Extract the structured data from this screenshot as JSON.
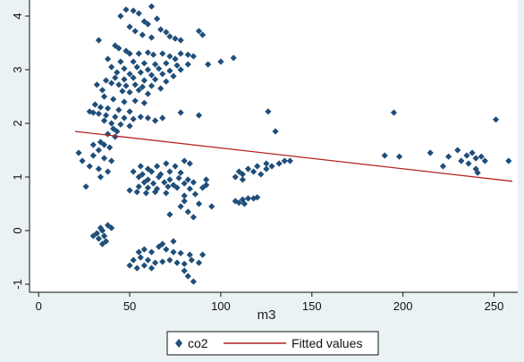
{
  "chart_data": {
    "type": "scatter",
    "title": "",
    "xlabel": "m3",
    "ylabel": "",
    "xlim": [
      -5,
      263
    ],
    "ylim": [
      -1.15,
      4.3
    ],
    "xticks": [
      0,
      50,
      100,
      150,
      200,
      250
    ],
    "yticks": [
      -1,
      0,
      1,
      2,
      3,
      4
    ],
    "grid": false,
    "legend_position": "bottom",
    "colors": {
      "background": "#eaf2f3",
      "plot_area": "#ffffff",
      "points": "#1f4e79",
      "fit_line": "#b22222"
    },
    "series": [
      {
        "name": "co2",
        "kind": "scatter",
        "marker": "diamond",
        "points": [
          [
            48,
            4.12
          ],
          [
            52,
            4.1
          ],
          [
            55,
            4.05
          ],
          [
            62,
            4.18
          ],
          [
            45,
            4.0
          ],
          [
            65,
            3.95
          ],
          [
            58,
            3.9
          ],
          [
            60,
            3.85
          ],
          [
            50,
            3.8
          ],
          [
            67,
            3.75
          ],
          [
            70,
            3.7
          ],
          [
            53,
            3.72
          ],
          [
            57,
            3.65
          ],
          [
            62,
            3.6
          ],
          [
            72,
            3.62
          ],
          [
            75,
            3.58
          ],
          [
            78,
            3.55
          ],
          [
            88,
            3.72
          ],
          [
            90,
            3.65
          ],
          [
            33,
            3.55
          ],
          [
            42,
            3.45
          ],
          [
            44,
            3.4
          ],
          [
            48,
            3.35
          ],
          [
            50,
            3.3
          ],
          [
            55,
            3.3
          ],
          [
            60,
            3.32
          ],
          [
            63,
            3.28
          ],
          [
            68,
            3.3
          ],
          [
            72,
            3.25
          ],
          [
            78,
            3.3
          ],
          [
            82,
            3.28
          ],
          [
            85,
            3.25
          ],
          [
            107,
            3.22
          ],
          [
            75,
            3.2
          ],
          [
            38,
            3.2
          ],
          [
            45,
            3.15
          ],
          [
            52,
            3.15
          ],
          [
            58,
            3.12
          ],
          [
            64,
            3.1
          ],
          [
            70,
            3.12
          ],
          [
            76,
            3.08
          ],
          [
            82,
            3.1
          ],
          [
            93,
            3.1
          ],
          [
            100,
            3.15
          ],
          [
            40,
            3.05
          ],
          [
            47,
            3.02
          ],
          [
            54,
            3.05
          ],
          [
            60,
            3.0
          ],
          [
            66,
            3.02
          ],
          [
            72,
            2.98
          ],
          [
            78,
            3.0
          ],
          [
            43,
            2.95
          ],
          [
            50,
            2.92
          ],
          [
            56,
            2.95
          ],
          [
            62,
            2.9
          ],
          [
            68,
            2.92
          ],
          [
            74,
            2.88
          ],
          [
            42,
            2.85
          ],
          [
            47,
            2.82
          ],
          [
            52,
            2.85
          ],
          [
            58,
            2.8
          ],
          [
            64,
            2.82
          ],
          [
            70,
            2.78
          ],
          [
            37,
            2.8
          ],
          [
            40,
            2.75
          ],
          [
            44,
            2.72
          ],
          [
            48,
            2.7
          ],
          [
            53,
            2.72
          ],
          [
            57,
            2.68
          ],
          [
            62,
            2.7
          ],
          [
            67,
            2.65
          ],
          [
            32,
            2.72
          ],
          [
            35,
            2.62
          ],
          [
            46,
            2.6
          ],
          [
            50,
            2.58
          ],
          [
            55,
            2.62
          ],
          [
            60,
            2.55
          ],
          [
            36,
            2.5
          ],
          [
            41,
            2.45
          ],
          [
            47,
            2.4
          ],
          [
            53,
            2.42
          ],
          [
            58,
            2.38
          ],
          [
            31,
            2.35
          ],
          [
            34,
            2.3
          ],
          [
            38,
            2.28
          ],
          [
            44,
            2.25
          ],
          [
            50,
            2.22
          ],
          [
            28,
            2.22
          ],
          [
            30,
            2.2
          ],
          [
            33,
            2.18
          ],
          [
            37,
            2.15
          ],
          [
            42,
            2.12
          ],
          [
            47,
            2.1
          ],
          [
            52,
            2.08
          ],
          [
            56,
            2.12
          ],
          [
            60,
            2.1
          ],
          [
            64,
            2.05
          ],
          [
            68,
            2.1
          ],
          [
            78,
            2.2
          ],
          [
            88,
            2.15
          ],
          [
            126,
            2.22
          ],
          [
            195,
            2.2
          ],
          [
            251,
            2.07
          ],
          [
            36,
            2.05
          ],
          [
            40,
            2.0
          ],
          [
            45,
            1.98
          ],
          [
            50,
            1.95
          ],
          [
            41,
            1.9
          ],
          [
            43,
            1.85
          ],
          [
            38,
            1.8
          ],
          [
            42,
            1.75
          ],
          [
            130,
            1.85
          ],
          [
            34,
            1.65
          ],
          [
            36,
            1.6
          ],
          [
            39,
            1.55
          ],
          [
            30,
            1.6
          ],
          [
            33,
            1.5
          ],
          [
            22,
            1.45
          ],
          [
            24,
            1.3
          ],
          [
            30,
            1.4
          ],
          [
            36,
            1.35
          ],
          [
            40,
            1.3
          ],
          [
            28,
            1.2
          ],
          [
            33,
            1.15
          ],
          [
            38,
            1.1
          ],
          [
            26,
            0.82
          ],
          [
            34,
            1.0
          ],
          [
            56,
            1.2
          ],
          [
            60,
            1.15
          ],
          [
            65,
            1.2
          ],
          [
            70,
            1.25
          ],
          [
            75,
            1.2
          ],
          [
            80,
            1.3
          ],
          [
            83,
            1.25
          ],
          [
            52,
            1.1
          ],
          [
            57,
            1.05
          ],
          [
            62,
            1.1
          ],
          [
            67,
            1.05
          ],
          [
            72,
            1.1
          ],
          [
            78,
            1.08
          ],
          [
            55,
            1.0
          ],
          [
            60,
            0.95
          ],
          [
            66,
            1.0
          ],
          [
            72,
            0.95
          ],
          [
            77,
            0.98
          ],
          [
            82,
            0.95
          ],
          [
            92,
            0.95
          ],
          [
            58,
            0.9
          ],
          [
            63,
            0.88
          ],
          [
            69,
            0.9
          ],
          [
            74,
            0.85
          ],
          [
            80,
            0.88
          ],
          [
            85,
            0.9
          ],
          [
            92,
            0.85
          ],
          [
            55,
            0.82
          ],
          [
            60,
            0.8
          ],
          [
            65,
            0.78
          ],
          [
            71,
            0.82
          ],
          [
            76,
            0.8
          ],
          [
            83,
            0.78
          ],
          [
            90,
            0.8
          ],
          [
            50,
            0.75
          ],
          [
            54,
            0.72
          ],
          [
            59,
            0.7
          ],
          [
            64,
            0.72
          ],
          [
            70,
            0.7
          ],
          [
            80,
            0.65
          ],
          [
            86,
            0.68
          ],
          [
            80,
            0.55
          ],
          [
            88,
            0.5
          ],
          [
            95,
            0.45
          ],
          [
            78,
            0.45
          ],
          [
            82,
            0.35
          ],
          [
            72,
            0.3
          ],
          [
            85,
            0.25
          ],
          [
            110,
            1.1
          ],
          [
            115,
            1.15
          ],
          [
            120,
            1.2
          ],
          [
            125,
            1.25
          ],
          [
            128,
            1.2
          ],
          [
            132,
            1.25
          ],
          [
            135,
            1.3
          ],
          [
            138,
            1.3
          ],
          [
            108,
            1.0
          ],
          [
            112,
            1.05
          ],
          [
            118,
            1.1
          ],
          [
            122,
            1.05
          ],
          [
            125,
            1.15
          ],
          [
            112,
            0.95
          ],
          [
            108,
            0.55
          ],
          [
            112,
            0.58
          ],
          [
            115,
            0.6
          ],
          [
            118,
            0.6
          ],
          [
            120,
            0.62
          ],
          [
            110,
            0.52
          ],
          [
            113,
            0.5
          ],
          [
            190,
            1.4
          ],
          [
            198,
            1.38
          ],
          [
            215,
            1.45
          ],
          [
            225,
            1.38
          ],
          [
            230,
            1.5
          ],
          [
            235,
            1.4
          ],
          [
            240,
            1.35
          ],
          [
            243,
            1.38
          ],
          [
            238,
            1.45
          ],
          [
            245,
            1.3
          ],
          [
            258,
            1.3
          ],
          [
            232,
            1.3
          ],
          [
            236,
            1.25
          ],
          [
            240,
            1.15
          ],
          [
            241,
            1.08
          ],
          [
            222,
            1.2
          ],
          [
            38,
            0.1
          ],
          [
            40,
            0.05
          ],
          [
            35,
            0.0
          ],
          [
            32,
            -0.05
          ],
          [
            36,
            -0.1
          ],
          [
            33,
            -0.15
          ],
          [
            37,
            -0.2
          ],
          [
            35,
            -0.25
          ],
          [
            30,
            -0.1
          ],
          [
            34,
            0.05
          ],
          [
            55,
            -0.4
          ],
          [
            58,
            -0.35
          ],
          [
            62,
            -0.4
          ],
          [
            66,
            -0.3
          ],
          [
            70,
            -0.35
          ],
          [
            74,
            -0.4
          ],
          [
            78,
            -0.42
          ],
          [
            83,
            -0.45
          ],
          [
            90,
            -0.45
          ],
          [
            52,
            -0.55
          ],
          [
            56,
            -0.5
          ],
          [
            60,
            -0.55
          ],
          [
            64,
            -0.6
          ],
          [
            68,
            -0.58
          ],
          [
            72,
            -0.55
          ],
          [
            76,
            -0.6
          ],
          [
            80,
            -0.62
          ],
          [
            84,
            -0.55
          ],
          [
            88,
            -0.6
          ],
          [
            50,
            -0.65
          ],
          [
            54,
            -0.7
          ],
          [
            58,
            -0.65
          ],
          [
            62,
            -0.7
          ],
          [
            80,
            -0.75
          ],
          [
            82,
            -0.85
          ],
          [
            85,
            -0.95
          ],
          [
            74,
            -0.2
          ],
          [
            68,
            -0.25
          ]
        ]
      },
      {
        "name": "Fitted values",
        "kind": "line",
        "points": [
          [
            20,
            1.85
          ],
          [
            260,
            0.92
          ]
        ]
      }
    ]
  }
}
